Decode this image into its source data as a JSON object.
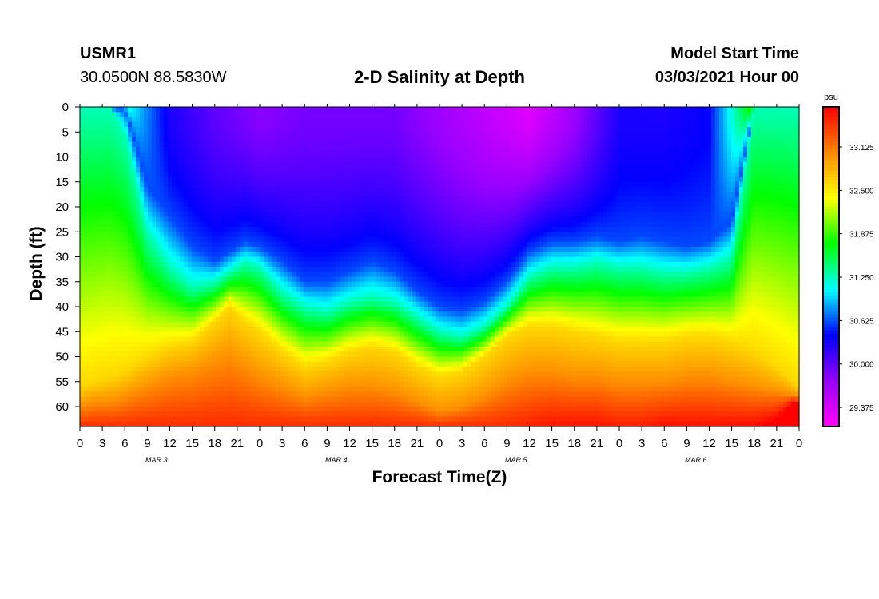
{
  "header": {
    "station_id": "USMR1",
    "station_coords": "30.0500N 88.5830W",
    "title": "2-D Salinity at Depth",
    "start_label": "Model Start Time",
    "start_value": "03/03/2021 Hour 00"
  },
  "chart_data": {
    "type": "heatmap",
    "title": "2-D Salinity at Depth",
    "xlabel": "Forecast Time(Z)",
    "ylabel": "Depth (ft)",
    "x_ticks": [
      "0",
      "3",
      "6",
      "9",
      "12",
      "15",
      "18",
      "21",
      "0",
      "3",
      "6",
      "9",
      "12",
      "15",
      "18",
      "21",
      "0",
      "3",
      "6",
      "9",
      "12",
      "15",
      "18",
      "21",
      "0",
      "3",
      "6",
      "9",
      "12",
      "15",
      "18",
      "21",
      "0"
    ],
    "x_range_hours": [
      0,
      96
    ],
    "day_labels": [
      {
        "label": "MAR 3",
        "hour": 10
      },
      {
        "label": "MAR 4",
        "hour": 34
      },
      {
        "label": "MAR 5",
        "hour": 58
      },
      {
        "label": "MAR 6",
        "hour": 82
      }
    ],
    "y_ticks": [
      0,
      5,
      10,
      15,
      20,
      25,
      30,
      35,
      40,
      45,
      50,
      55,
      60
    ],
    "ylim": [
      0,
      64
    ],
    "y_inverted": true,
    "colorbar": {
      "unit": "psu",
      "ticks": [
        "33.125",
        "32.500",
        "31.875",
        "31.250",
        "30.625",
        "30.000",
        "29.375"
      ],
      "tick_values": [
        33.125,
        32.5,
        31.875,
        31.25,
        30.625,
        30.0,
        29.375
      ],
      "range": [
        29.1,
        33.7
      ],
      "colors": [
        "#ff00ff",
        "#9600ff",
        "#0000ff",
        "#00ffff",
        "#00ff00",
        "#ffff00",
        "#ff8800",
        "#ff0000"
      ]
    },
    "contours_by_hour": {
      "hours": [
        0,
        2,
        4,
        6,
        9,
        12,
        15,
        18,
        20,
        22,
        24,
        27,
        30,
        33,
        36,
        39,
        42,
        45,
        48,
        51,
        54,
        57,
        60,
        63,
        66,
        69,
        72,
        75,
        78,
        81,
        84,
        87,
        90,
        93,
        96
      ],
      "blue_lower_ft": [
        0,
        0,
        0,
        0,
        16,
        22,
        28,
        31,
        29,
        27,
        28,
        31,
        35,
        35,
        33,
        31,
        33,
        37,
        40,
        41,
        39,
        35,
        29,
        27,
        27,
        26,
        27,
        26,
        27,
        28,
        27,
        23,
        0,
        0,
        0
      ],
      "cyan_lower_ft": [
        0,
        0,
        0,
        5,
        25,
        32,
        36,
        35,
        33,
        31,
        32,
        37,
        40,
        41,
        39,
        38,
        39,
        42,
        45,
        46,
        44,
        40,
        34,
        32,
        32,
        31,
        32,
        32,
        33,
        33,
        32,
        30,
        0,
        0,
        0
      ],
      "yellow_upper_ft": [
        56,
        55,
        54,
        53,
        50,
        48,
        47,
        43,
        40,
        43,
        45,
        49,
        52,
        51,
        49,
        48,
        49,
        52,
        54,
        53,
        50,
        46,
        44,
        44,
        45,
        46,
        47,
        47,
        47,
        46,
        46,
        47,
        49,
        52,
        56
      ],
      "orange_upper_ft": [
        60,
        59,
        59,
        58,
        56,
        54,
        53,
        51,
        50,
        52,
        54,
        56,
        58,
        57,
        56,
        56,
        57,
        59,
        61,
        60,
        58,
        55,
        53,
        53,
        54,
        54,
        55,
        55,
        55,
        54,
        54,
        55,
        56,
        57,
        58
      ],
      "red_upper_ft": [
        64,
        64,
        64,
        64,
        64,
        64,
        64,
        64,
        64,
        64,
        64,
        64,
        64,
        64,
        64,
        64,
        64,
        64,
        64,
        64,
        64,
        64,
        63,
        62,
        62,
        62,
        63,
        63,
        62,
        62,
        62,
        62,
        62,
        61,
        58
      ]
    },
    "surface_min_psu_by_hour": {
      "hours": [
        0,
        6,
        12,
        18,
        24,
        30,
        36,
        42,
        48,
        54,
        60,
        66,
        72,
        78,
        84,
        90,
        96
      ],
      "values": [
        31.9,
        31.2,
        30.3,
        30.0,
        29.8,
        29.9,
        29.9,
        29.9,
        29.7,
        29.5,
        29.3,
        29.7,
        30.3,
        30.3,
        30.4,
        31.9,
        31.9
      ]
    }
  }
}
